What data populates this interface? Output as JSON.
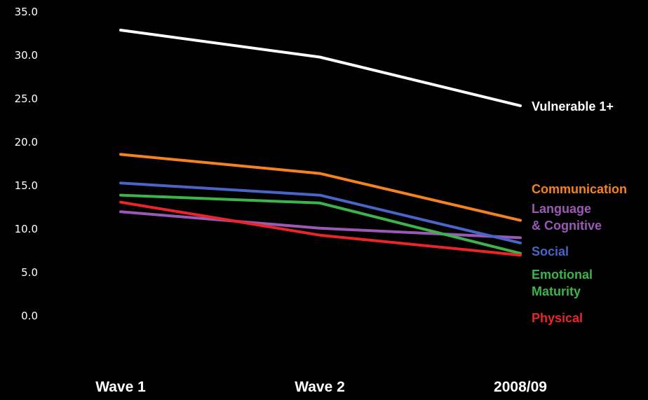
{
  "chart_data": {
    "type": "line",
    "title": "",
    "xlabel": "",
    "ylabel": "",
    "categories": [
      "Wave 1",
      "Wave 2",
      "2008/09"
    ],
    "ylim": [
      0,
      35
    ],
    "y_ticks": [
      "0.0",
      "5.0",
      "10.0",
      "15.0",
      "20.0",
      "25.0",
      "30.0",
      "35.0"
    ],
    "grid": false,
    "legend": "inline labels at right end of lines",
    "series": [
      {
        "name": "Vulnerable 1+",
        "label_lines": [
          "Vulnerable 1+"
        ],
        "color": "#ffffff",
        "values": [
          32.9,
          29.8,
          24.2
        ]
      },
      {
        "name": "Communication",
        "label_lines": [
          "Communication"
        ],
        "color": "#f58220",
        "values": [
          18.6,
          16.4,
          11.0
        ]
      },
      {
        "name": "Language & Cognitive",
        "label_lines": [
          "Language",
          "& Cognitive"
        ],
        "color": "#9b59b6",
        "values": [
          12.0,
          10.1,
          9.0
        ]
      },
      {
        "name": "Social",
        "label_lines": [
          "Social"
        ],
        "color": "#4a64c8",
        "values": [
          15.3,
          13.9,
          8.4
        ]
      },
      {
        "name": "Emotional Maturity",
        "label_lines": [
          "Emotional",
          "Maturity"
        ],
        "color": "#3cb44b",
        "values": [
          13.9,
          13.0,
          7.2
        ]
      },
      {
        "name": "Physical",
        "label_lines": [
          "Physical"
        ],
        "color": "#e8262a",
        "values": [
          13.1,
          9.3,
          7.0
        ]
      }
    ]
  }
}
